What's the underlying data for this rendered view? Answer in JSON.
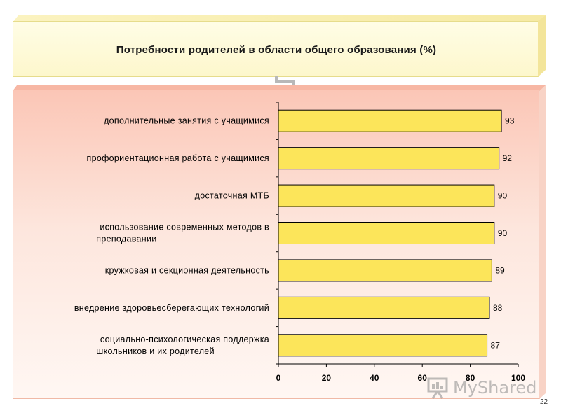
{
  "slide": {
    "page_number": "22",
    "watermark": "MyShared",
    "watermark_icon": "presentation-board-icon"
  },
  "chart_data": {
    "type": "bar",
    "orientation": "horizontal",
    "title": "Потребности родителей в области общего образования (%)",
    "categories": [
      "дополнительные занятия с учащимися",
      "профориентационная работа с учащимися",
      "достаточная МТБ",
      "использование современных методов в преподавании",
      "кружковая и секционная деятельность",
      "внедрение здоровьесберегающих технологий",
      "социально-психологическая поддержка школьников и их родителей"
    ],
    "category_lines": [
      [
        "дополнительные занятия с учащимися"
      ],
      [
        "профориентационная работа с учащимися"
      ],
      [
        "достаточная МТБ"
      ],
      [
        "использование современных методов в",
        "преподавании"
      ],
      [
        "кружковая и секционная деятельность"
      ],
      [
        "внедрение здоровьесберегающих технологий"
      ],
      [
        "социально-психологическая поддержка",
        "школьников и их родителей"
      ]
    ],
    "values": [
      93,
      92,
      90,
      90,
      89,
      88,
      87
    ],
    "xlim": [
      0,
      100
    ],
    "xticks": [
      0,
      20,
      40,
      60,
      80,
      100
    ],
    "grid": false,
    "data_labels": true,
    "bar_color": "#fce55a",
    "bar_border": "#000000"
  }
}
